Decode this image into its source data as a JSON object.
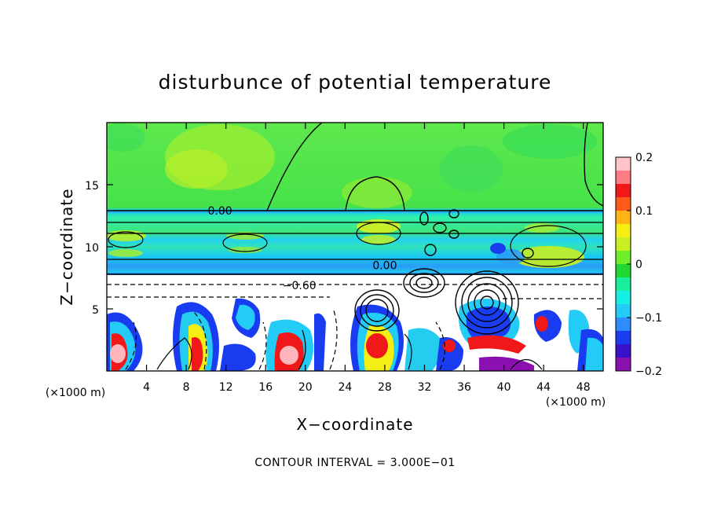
{
  "chart_data": {
    "type": "heatmap",
    "title": "disturbunce of potential temperature",
    "xlabel": "X−coordinate",
    "ylabel": "Z−coordinate",
    "x_unit": "(×1000 m)",
    "x_unit_right": "(×1000 m)",
    "xlim": [
      0,
      50
    ],
    "ylim": [
      0,
      20
    ],
    "x_ticks": [
      4,
      8,
      12,
      16,
      20,
      24,
      28,
      32,
      36,
      40,
      44,
      48
    ],
    "y_ticks": [
      5,
      10,
      15
    ],
    "colorbar": {
      "range": [
        -0.2,
        0.2
      ],
      "ticks": [
        {
          "value": 0.2,
          "label": "0.2"
        },
        {
          "value": 0.1,
          "label": "0.1"
        },
        {
          "value": 0,
          "label": "0"
        },
        {
          "value": -0.1,
          "label": "−0.1"
        },
        {
          "value": -0.2,
          "label": "−0.2"
        }
      ],
      "stops": [
        "#8a10b0",
        "#3a10c8",
        "#1a3cf0",
        "#2f8cff",
        "#22ccf6",
        "#16f0e4",
        "#18ef9a",
        "#20d832",
        "#6ef028",
        "#c8f020",
        "#f4ee12",
        "#ffb412",
        "#ff5a1a",
        "#f01818",
        "#ff7c84",
        "#ffc4c8"
      ]
    },
    "contour_labels": [
      {
        "text": "0.00",
        "x": 11.4,
        "z": 12.9
      },
      {
        "text": "0.00",
        "x": 28.0,
        "z": 8.5
      },
      {
        "text": "−0.60",
        "x": 19.4,
        "z": 6.9
      }
    ],
    "contour_interval_text": "CONTOUR INTERVAL = 3.000E−01",
    "colors": {
      "upper_field": "#4fe84a",
      "stable_band": "#28d8ee",
      "band_edge_dark": "#2f7cf2",
      "lower_background": "#ffffff",
      "warm_anomaly": "#f01818",
      "cold_anomaly": "#1a28e0"
    }
  }
}
